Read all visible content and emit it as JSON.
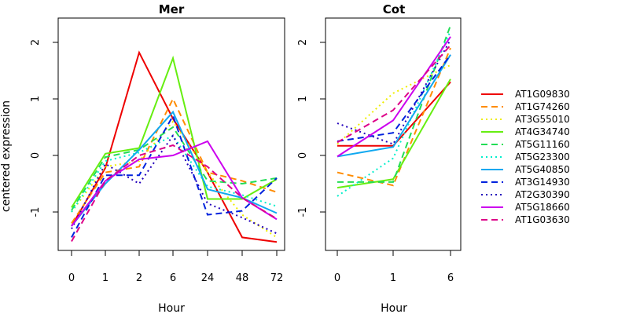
{
  "chart_data": [
    {
      "type": "line",
      "title": "Mer",
      "xlabel": "Hour",
      "ylabel": "centered expression",
      "categories": [
        "0",
        "1",
        "2",
        "6",
        "24",
        "48",
        "72"
      ],
      "ylim": [
        -1.68,
        2.43
      ],
      "yticks": [
        "-1",
        "0",
        "1",
        "2"
      ],
      "series": [
        {
          "name": "AT1G09830",
          "color": "#ee0000",
          "dash": "solid",
          "values": [
            -1.25,
            -0.22,
            1.82,
            0.65,
            -0.3,
            -1.45,
            -1.53
          ]
        },
        {
          "name": "AT1G74260",
          "color": "#ff8c00",
          "dash": "dashed",
          "values": [
            -1.2,
            -0.3,
            -0.2,
            1.0,
            -0.3,
            -0.45,
            -0.65
          ]
        },
        {
          "name": "AT3G55010",
          "color": "#eeee00",
          "dash": "dotted",
          "values": [
            -1.0,
            -0.2,
            -0.1,
            0.6,
            -0.3,
            -1.05,
            -1.45
          ]
        },
        {
          "name": "AT4G34740",
          "color": "#66ee11",
          "dash": "solid",
          "values": [
            -0.92,
            0.03,
            0.13,
            1.72,
            -0.77,
            -0.77,
            -0.42
          ]
        },
        {
          "name": "AT5G11160",
          "color": "#22dd55",
          "dash": "dashed",
          "values": [
            -0.97,
            -0.03,
            0.1,
            0.5,
            -0.45,
            -0.5,
            -0.4
          ]
        },
        {
          "name": "AT5G23300",
          "color": "#00eecc",
          "dash": "dotted",
          "values": [
            -1.0,
            -0.1,
            0.05,
            0.35,
            -0.55,
            -0.7,
            -0.9
          ]
        },
        {
          "name": "AT5G40850",
          "color": "#10a8f0",
          "dash": "solid",
          "values": [
            -1.25,
            -0.5,
            0.1,
            0.77,
            -0.6,
            -0.75,
            -1.02
          ]
        },
        {
          "name": "AT3G14930",
          "color": "#0022dd",
          "dash": "dashed",
          "values": [
            -1.45,
            -0.35,
            -0.35,
            0.7,
            -1.05,
            -0.98,
            -0.4
          ]
        },
        {
          "name": "AT2G30390",
          "color": "#2200bb",
          "dash": "dotted",
          "values": [
            -1.3,
            -0.15,
            -0.5,
            0.35,
            -0.85,
            -1.1,
            -1.38
          ]
        },
        {
          "name": "AT5G18660",
          "color": "#cc00ee",
          "dash": "solid",
          "values": [
            -1.25,
            -0.45,
            -0.07,
            0.0,
            0.25,
            -0.75,
            -1.13
          ]
        },
        {
          "name": "AT1G03630",
          "color": "#dd0088",
          "dash": "dashed",
          "values": [
            -1.52,
            -0.45,
            0.0,
            0.18,
            -0.2,
            -0.75,
            -1.12
          ]
        }
      ]
    },
    {
      "type": "line",
      "title": "Cot",
      "xlabel": "Hour",
      "ylabel": "",
      "categories": [
        "0",
        "1",
        "6"
      ],
      "ylim": [
        -1.68,
        2.43
      ],
      "yticks": [
        "-1",
        "0",
        "1",
        "2"
      ],
      "series": [
        {
          "name": "AT1G09830",
          "color": "#ee0000",
          "dash": "solid",
          "values": [
            0.17,
            0.17,
            1.3
          ]
        },
        {
          "name": "AT1G74260",
          "color": "#ff8c00",
          "dash": "dashed",
          "values": [
            -0.3,
            -0.53,
            1.9
          ]
        },
        {
          "name": "AT3G55010",
          "color": "#eeee00",
          "dash": "dotted",
          "values": [
            0.2,
            1.1,
            1.6
          ]
        },
        {
          "name": "AT4G34740",
          "color": "#66ee11",
          "dash": "solid",
          "values": [
            -0.57,
            -0.42,
            1.35
          ]
        },
        {
          "name": "AT5G11160",
          "color": "#22dd55",
          "dash": "dashed",
          "values": [
            -0.47,
            -0.47,
            2.3
          ]
        },
        {
          "name": "AT5G23300",
          "color": "#00eecc",
          "dash": "dotted",
          "values": [
            -0.72,
            -0.05,
            2.2
          ]
        },
        {
          "name": "AT5G40850",
          "color": "#10a8f0",
          "dash": "solid",
          "values": [
            -0.02,
            0.15,
            1.78
          ]
        },
        {
          "name": "AT3G14930",
          "color": "#0022dd",
          "dash": "dashed",
          "values": [
            0.25,
            0.4,
            1.78
          ]
        },
        {
          "name": "AT2G30390",
          "color": "#2200bb",
          "dash": "dotted",
          "values": [
            0.57,
            0.2,
            2.05
          ]
        },
        {
          "name": "AT5G18660",
          "color": "#cc00ee",
          "dash": "solid",
          "values": [
            -0.02,
            0.62,
            2.1
          ]
        },
        {
          "name": "AT1G03630",
          "color": "#dd0088",
          "dash": "dashed",
          "values": [
            0.23,
            0.8,
            1.95
          ]
        }
      ]
    }
  ],
  "legend": {
    "placement": "right",
    "entries": [
      "AT1G09830",
      "AT1G74260",
      "AT3G55010",
      "AT4G34740",
      "AT5G11160",
      "AT5G23300",
      "AT5G40850",
      "AT3G14930",
      "AT2G30390",
      "AT5G18660",
      "AT1G03630"
    ]
  }
}
